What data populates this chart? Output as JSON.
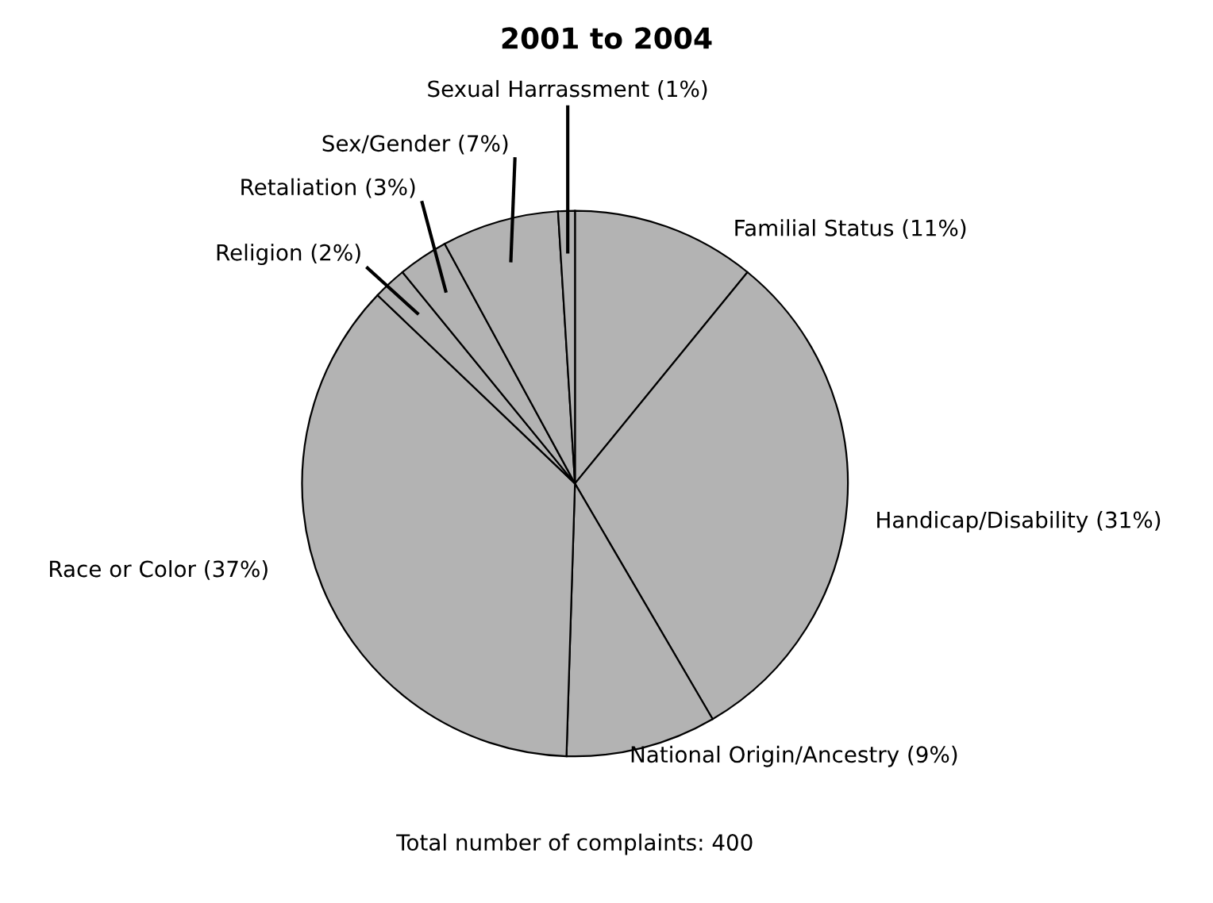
{
  "chart_data": {
    "type": "pie",
    "title": "2001 to 2004",
    "categories": [
      "Familial Status (11%)",
      "Handicap/Disability (31%)",
      "National Origin/Ancestry (9%)",
      "Race or Color (37%)",
      "Religion (2%)",
      "Retaliation (3%)",
      "Sex/Gender (7%)",
      "Sexual Harrassment (1%)"
    ],
    "values": [
      11,
      31,
      9,
      37,
      2,
      3,
      7,
      1
    ],
    "colors": [
      "#b3b3b3",
      "#b3b3b3",
      "#b3b3b3",
      "#b3b3b3",
      "#b3b3b3",
      "#b3b3b3",
      "#b3b3b3",
      "#b3b3b3"
    ],
    "annotations": [
      "Total number of complaints: 400"
    ]
  }
}
